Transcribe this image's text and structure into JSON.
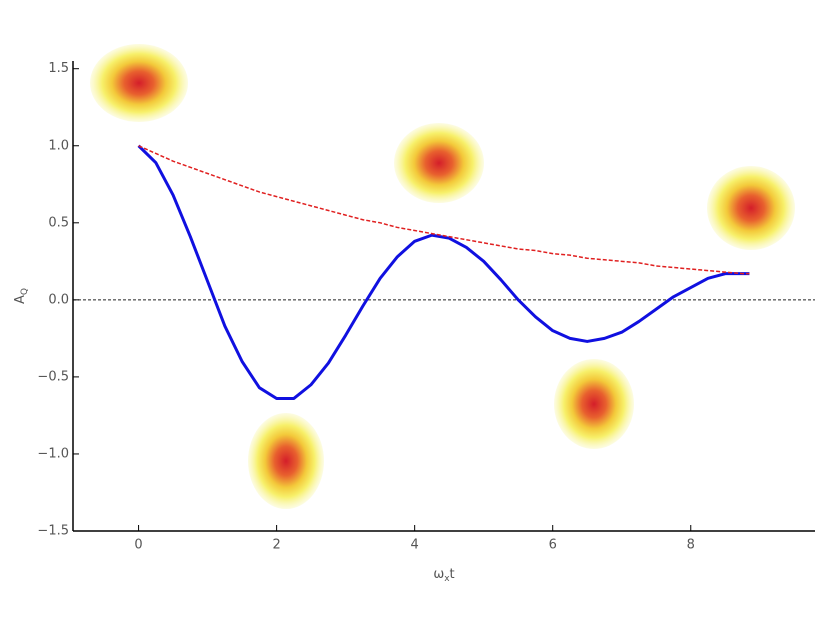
{
  "chart_data": {
    "type": "line",
    "xlabel_parts": [
      "ω",
      "x",
      "t"
    ],
    "ylabel_parts": [
      "A",
      "Q"
    ],
    "x": [
      0,
      0.25,
      0.5,
      0.75,
      1,
      1.25,
      1.5,
      1.75,
      2,
      2.25,
      2.5,
      2.75,
      3,
      3.25,
      3.5,
      3.75,
      4,
      4.25,
      4.5,
      4.75,
      5,
      5.25,
      5.5,
      5.75,
      6,
      6.25,
      6.5,
      6.75,
      7,
      7.25,
      7.5,
      7.75,
      8,
      8.25,
      8.5,
      8.75,
      8.85
    ],
    "series": [
      {
        "color": "#1010e0",
        "dash": false,
        "values": [
          1.0,
          0.89,
          0.68,
          0.41,
          0.12,
          -0.17,
          -0.4,
          -0.57,
          -0.64,
          -0.64,
          -0.55,
          -0.41,
          -0.23,
          -0.04,
          0.14,
          0.28,
          0.38,
          0.42,
          0.4,
          0.34,
          0.25,
          0.13,
          0.0,
          -0.11,
          -0.2,
          -0.25,
          -0.27,
          -0.25,
          -0.21,
          -0.14,
          -0.06,
          0.02,
          0.08,
          0.14,
          0.17,
          0.17,
          0.17
        ]
      },
      {
        "color": "#e02020",
        "dash": true,
        "values": [
          1.0,
          0.95,
          0.9,
          0.86,
          0.82,
          0.78,
          0.74,
          0.7,
          0.67,
          0.64,
          0.61,
          0.58,
          0.55,
          0.52,
          0.5,
          0.47,
          0.45,
          0.43,
          0.41,
          0.39,
          0.37,
          0.35,
          0.33,
          0.32,
          0.3,
          0.29,
          0.27,
          0.26,
          0.25,
          0.24,
          0.22,
          0.21,
          0.2,
          0.19,
          0.18,
          0.17,
          0.17
        ]
      }
    ],
    "hline": 0,
    "xlim": [
      -0.95,
      9.8
    ],
    "ylim": [
      -1.5,
      1.55
    ],
    "xticks": [
      0,
      2,
      4,
      6,
      8
    ],
    "yticks": [
      {
        "value": -1.5,
        "label": "−1.5"
      },
      {
        "value": -1.0,
        "label": "−1.0"
      },
      {
        "value": -0.5,
        "label": "−0.5"
      },
      {
        "value": 0,
        "label": "0.0"
      },
      0.5,
      {
        "value": 1.0,
        "label": "1.0"
      },
      1.5
    ]
  }
}
